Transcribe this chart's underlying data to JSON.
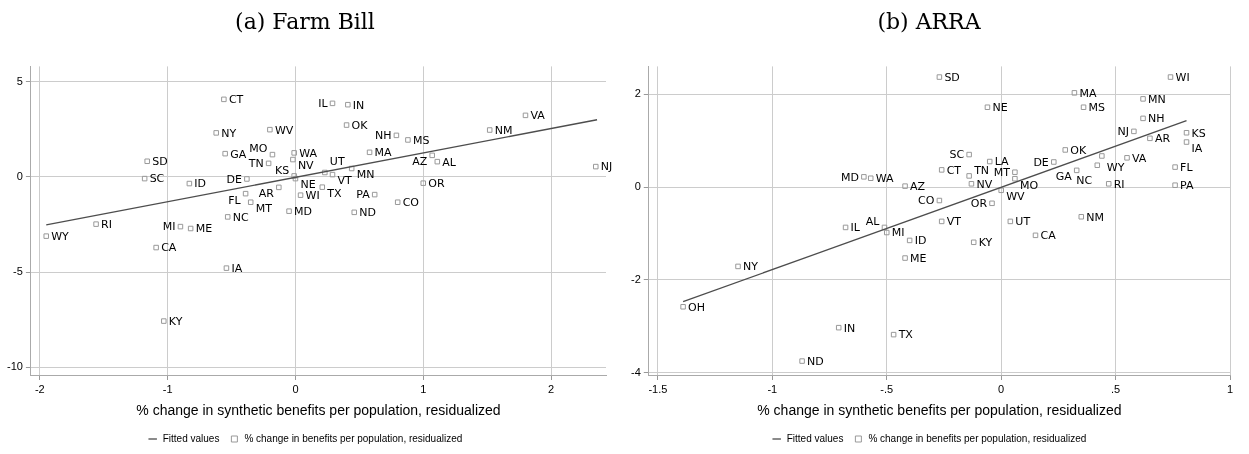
{
  "chart_data": [
    {
      "type": "scatter",
      "title": "(a) Farm Bill",
      "xlabel": "% change in synthetic benefits per population, residualized",
      "xlim": [
        -2.07,
        2.43
      ],
      "ylim": [
        -10.4,
        5.8
      ],
      "xticks": [
        -2,
        -1,
        0,
        1,
        2
      ],
      "yticks": [
        -10,
        -5,
        0,
        5
      ],
      "grid": true,
      "legend": "bottom",
      "series": [
        {
          "type": "line",
          "name": "Fitted values",
          "color": "#4d4d4d",
          "marker": "none",
          "x": [
            -1.95,
            2.36
          ],
          "values": [
            -2.52,
            3.0
          ]
        },
        {
          "type": "scatter",
          "name": "% change in benefits per population, residualized",
          "color": "#999999",
          "marker": "square",
          "x": [
            -0.56,
            -0.62,
            -0.2,
            -0.55,
            -0.18,
            -0.01,
            -0.02,
            -0.21,
            -1.16,
            -1.18,
            -0.83,
            -0.38,
            -0.01,
            0.0,
            -0.13,
            -0.39,
            -0.35,
            0.04,
            -0.05,
            -0.53,
            -1.56,
            -0.9,
            -0.82,
            -1.95,
            -1.09,
            -0.54,
            -1.03,
            0.29,
            0.41,
            0.4,
            1.8,
            1.52,
            0.79,
            0.88,
            0.58,
            1.07,
            1.11,
            0.44,
            0.23,
            0.29,
            0.21,
            0.62,
            0.8,
            1.0,
            0.46,
            2.35
          ],
          "values": [
            4.07,
            2.31,
            2.48,
            1.22,
            1.17,
            1.26,
            0.91,
            0.71,
            0.82,
            -0.09,
            -0.35,
            -0.11,
            0.05,
            -0.09,
            -0.55,
            -0.88,
            -1.33,
            -0.96,
            -1.8,
            -2.1,
            -2.48,
            -2.61,
            -2.71,
            -3.11,
            -3.71,
            -4.79,
            -7.57,
            3.86,
            3.79,
            2.72,
            3.23,
            2.46,
            2.18,
            1.94,
            1.29,
            1.13,
            0.8,
            0.44,
            0.23,
            0.12,
            -0.54,
            -0.93,
            -1.33,
            -0.33,
            -1.86,
            0.54
          ],
          "value_labels": [
            "CT",
            "NY",
            "WV",
            "GA",
            "MO",
            "WA",
            "NV",
            "TN",
            "SD",
            "SC",
            "ID",
            "DE",
            "KS",
            "NE",
            "AR",
            "FL",
            "MT",
            "WI",
            "MD",
            "NC",
            "RI",
            "MI",
            "ME",
            "WY",
            "CA",
            "IA",
            "KY",
            "IL",
            "IN",
            "OK",
            "VA",
            "NM",
            "NH",
            "MS",
            "MA",
            "AZ",
            "AL",
            "MN",
            "UT",
            "VT",
            "TX",
            "PA",
            "CO",
            "OR",
            "ND",
            "NJ"
          ]
        }
      ]
    },
    {
      "type": "scatter",
      "title": "(b) ARRA",
      "xlabel": "% change in synthetic benefits per population, residualized",
      "xlim": [
        -1.54,
        1.0
      ],
      "ylim": [
        -4.05,
        2.6
      ],
      "xticks": [
        -1.5,
        -1,
        {
          "value": -0.5,
          "label": "-.5"
        },
        0,
        {
          "value": 0.5,
          "label": ".5"
        },
        1
      ],
      "yticks": [
        -4,
        -2,
        0,
        2
      ],
      "grid": true,
      "legend": "bottom",
      "series": [
        {
          "type": "line",
          "name": "Fitted values",
          "color": "#4d4d4d",
          "marker": "none",
          "x": [
            -1.39,
            0.81
          ],
          "values": [
            -2.47,
            1.43
          ]
        },
        {
          "type": "scatter",
          "name": "% change in benefits per population, residualized",
          "color": "#999999",
          "marker": "square",
          "x": [
            -0.6,
            -0.57,
            -0.42,
            -0.68,
            -0.51,
            -0.5,
            -0.4,
            -0.42,
            -1.15,
            -1.39,
            -0.71,
            -0.47,
            -0.87,
            -0.27,
            0.74,
            0.32,
            0.62,
            -0.06,
            0.36,
            0.62,
            0.58,
            0.65,
            0.81,
            0.81,
            0.28,
            -0.14,
            -0.05,
            0.23,
            0.44,
            0.55,
            0.42,
            0.33,
            0.76,
            -0.26,
            0.06,
            -0.14,
            0.06,
            -0.13,
            0.47,
            0.76,
            0.0,
            -0.27,
            -0.04,
            0.35,
            -0.26,
            0.04,
            0.15,
            -0.12
          ],
          "values": [
            0.22,
            0.19,
            0.02,
            -0.87,
            -0.87,
            -0.98,
            -1.15,
            -1.53,
            -1.71,
            -2.58,
            -3.03,
            -3.18,
            -3.75,
            2.37,
            2.37,
            2.03,
            1.9,
            1.72,
            1.72,
            1.48,
            1.2,
            1.05,
            1.17,
            0.97,
            0.8,
            0.7,
            0.55,
            0.54,
            0.67,
            0.63,
            0.47,
            0.36,
            0.43,
            0.37,
            0.32,
            0.24,
            0.18,
            0.07,
            0.07,
            0.04,
            -0.07,
            -0.29,
            -0.35,
            -0.64,
            -0.74,
            -0.74,
            -1.04,
            -1.19
          ],
          "value_labels": [
            "MD",
            "WA",
            "AZ",
            "IL",
            "AL",
            "MI",
            "ID",
            "ME",
            "NY",
            "OH",
            "IN",
            "TX",
            "ND",
            "SD",
            "WI",
            "MA",
            "MN",
            "NE",
            "MS",
            "NH",
            "NJ",
            "AR",
            "KS",
            "IA",
            "OK",
            "SC",
            "LA",
            "DE",
            "WY",
            "VA",
            "NC",
            "GA",
            "FL",
            "CT",
            "MT",
            "TN",
            "MO",
            "NV",
            "RI",
            "PA",
            "WV",
            "CO",
            "OR",
            "NM",
            "VT",
            "UT",
            "CA",
            "KY"
          ]
        }
      ]
    }
  ]
}
